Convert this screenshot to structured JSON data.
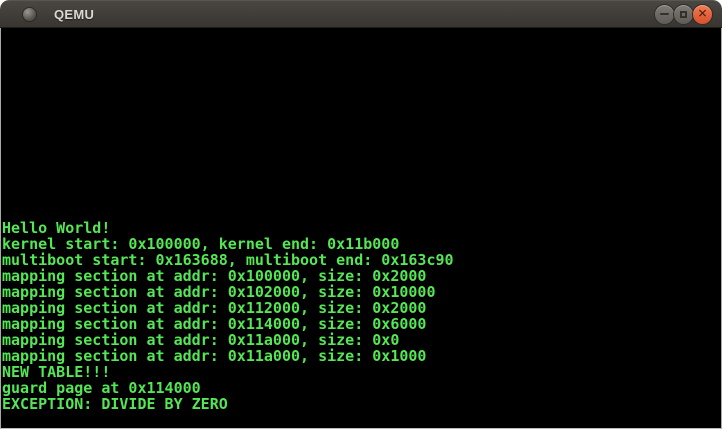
{
  "window": {
    "title": "QEMU",
    "controls": {
      "minimize_icon": "minus",
      "maximize_icon": "square-outline",
      "close_icon": "x",
      "close_glyph": "✕"
    }
  },
  "colors": {
    "console_text_green": "#54e654",
    "console_background": "#000000",
    "titlebar_background": "#403d39",
    "close_button_orange": "#e4613a",
    "window_border": "#a8a8a8"
  },
  "console": {
    "lines": [
      "Hello World!",
      "kernel start: 0x100000, kernel end: 0x11b000",
      "multiboot start: 0x163688, multiboot end: 0x163c90",
      "mapping section at addr: 0x100000, size: 0x2000",
      "mapping section at addr: 0x102000, size: 0x10000",
      "mapping section at addr: 0x112000, size: 0x2000",
      "mapping section at addr: 0x114000, size: 0x6000",
      "mapping section at addr: 0x11a000, size: 0x0",
      "mapping section at addr: 0x11a000, size: 0x1000",
      "NEW TABLE!!!",
      "guard page at 0x114000",
      "EXCEPTION: DIVIDE BY ZERO"
    ]
  }
}
